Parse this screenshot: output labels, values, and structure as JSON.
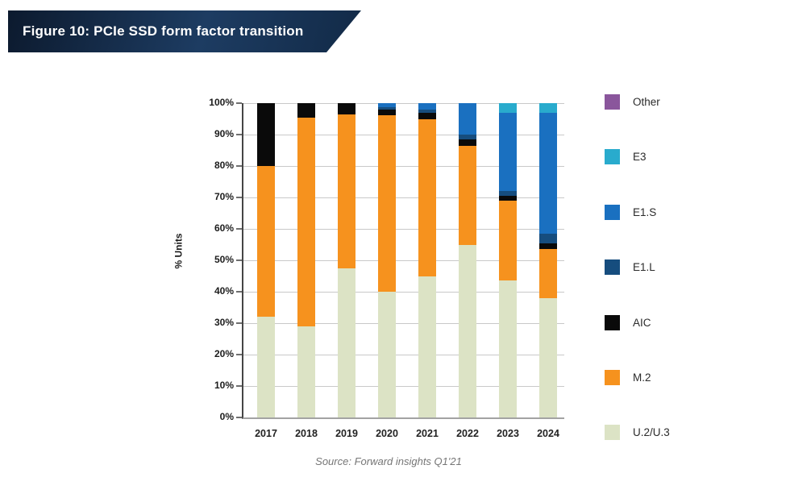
{
  "banner": {
    "title": "Figure 10: PCIe SSD form factor transition"
  },
  "source_note": "Source: Forward insights Q1'21",
  "chart_data": {
    "type": "bar",
    "stacked": true,
    "title": "Figure 10: PCIe SSD form factor transition",
    "xlabel": "",
    "ylabel": "% Units",
    "ylim": [
      0,
      100
    ],
    "grid": true,
    "legend_position": "right",
    "categories": [
      "2017",
      "2018",
      "2019",
      "2020",
      "2021",
      "2022",
      "2023",
      "2024"
    ],
    "yticks": [
      "0%",
      "10%",
      "20%",
      "30%",
      "40%",
      "50%",
      "60%",
      "70%",
      "80%",
      "90%",
      "100%"
    ],
    "series": [
      {
        "name": "U.2/U.3",
        "color": "#dce3c5",
        "values": [
          32,
          29,
          47.5,
          40,
          45,
          55,
          43.5,
          38
        ]
      },
      {
        "name": "M.2",
        "color": "#f6921e",
        "values": [
          48,
          66.5,
          49,
          56.2,
          50,
          31.5,
          25.5,
          15.5
        ]
      },
      {
        "name": "AIC",
        "color": "#0a0a0a",
        "values": [
          20,
          4.5,
          3.5,
          1.7,
          2,
          2,
          1.5,
          2
        ]
      },
      {
        "name": "E1.L",
        "color": "#164d7e",
        "values": [
          0,
          0,
          0,
          0.8,
          1,
          1.5,
          1.5,
          3
        ]
      },
      {
        "name": "E1.S",
        "color": "#1a70c0",
        "values": [
          0,
          0,
          0,
          1.3,
          2,
          10,
          25,
          38.5
        ]
      },
      {
        "name": "E3",
        "color": "#29abcd",
        "values": [
          0,
          0,
          0,
          0,
          0,
          0,
          3,
          3
        ]
      },
      {
        "name": "Other",
        "color": "#8a569c",
        "values": [
          0,
          0,
          0,
          0,
          0,
          0,
          0,
          0
        ]
      }
    ],
    "legend_order": [
      "Other",
      "E3",
      "E1.S",
      "E1.L",
      "AIC",
      "M.2",
      "U.2/U.3"
    ]
  },
  "layout_colors": {
    "banner_navy": "#13304f",
    "gridline_gray": "#c9c9c9",
    "axis_dark": "#454545"
  }
}
